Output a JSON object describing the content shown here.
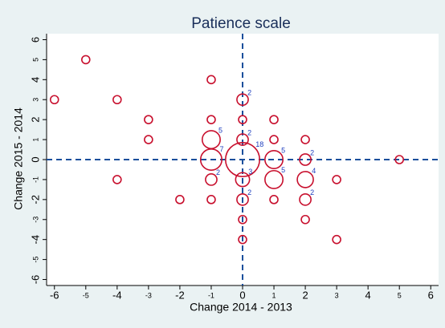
{
  "chart_data": {
    "type": "scatter",
    "title": "Patience scale",
    "xlabel": "Change 2014 - 2013",
    "ylabel": "Change 2015 - 2014",
    "x": [
      -6,
      -5,
      -4,
      -4,
      -3,
      -3,
      -2,
      -1,
      -1,
      -1,
      -1,
      -1,
      -1,
      0,
      0,
      0,
      0,
      0,
      0,
      0,
      0,
      1,
      1,
      1,
      1,
      1,
      2,
      2,
      2,
      2,
      2,
      3,
      3,
      5
    ],
    "y": [
      3,
      5,
      3,
      -1,
      2,
      1,
      -2,
      4,
      2,
      1,
      0,
      -1,
      -2,
      3,
      2,
      1,
      0,
      -1,
      -2,
      -3,
      -4,
      2,
      1,
      0,
      -1,
      -2,
      1,
      0,
      -1,
      -2,
      -3,
      -1,
      -4,
      0
    ],
    "sizes": [
      1,
      1,
      1,
      1,
      1,
      1,
      1,
      1,
      1,
      5,
      7,
      2,
      1,
      2,
      1,
      2,
      18,
      3,
      2,
      1,
      1,
      1,
      1,
      5,
      5,
      1,
      1,
      2,
      4,
      2,
      1,
      1,
      1,
      1
    ],
    "color": "#c8102e",
    "label_color": "#1f3fbf",
    "refline_color": "#1a4f9c",
    "xlim": [
      -6.25,
      6.25
    ],
    "ylim": [
      -6.3,
      6.3
    ],
    "xticks": [
      -6,
      -4,
      -2,
      0,
      2,
      4,
      6
    ],
    "xticks_minor": [
      -5,
      -3,
      -1,
      1,
      3,
      5
    ],
    "yticks": [
      -6,
      -4,
      -2,
      0,
      2,
      4,
      6
    ],
    "yticks_minor": [
      -5,
      -3,
      -1,
      1,
      3,
      5
    ],
    "reflines": {
      "x": 0,
      "y": 0
    }
  }
}
